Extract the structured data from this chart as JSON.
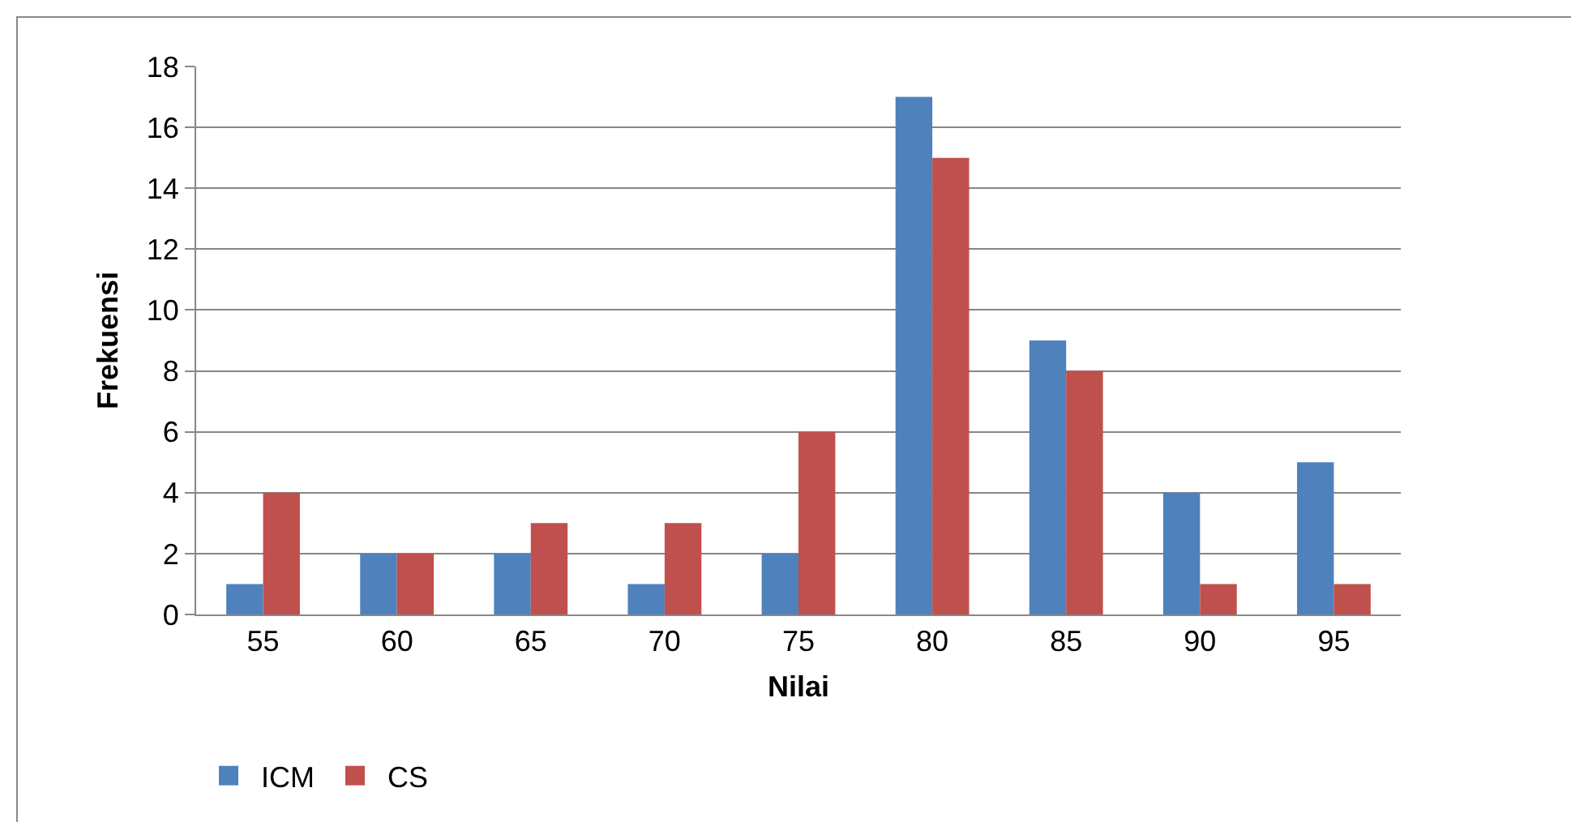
{
  "chart_data": {
    "type": "bar",
    "xlabel": "Nilai",
    "ylabel": "Frekuensi",
    "categories": [
      "55",
      "60",
      "65",
      "70",
      "75",
      "80",
      "85",
      "90",
      "95"
    ],
    "series": [
      {
        "name": "ICM",
        "color": "#4f81bd",
        "values": [
          1,
          2,
          2,
          1,
          2,
          17,
          9,
          4,
          5
        ]
      },
      {
        "name": "CS",
        "color": "#c0504d",
        "values": [
          4,
          2,
          3,
          3,
          6,
          15,
          8,
          1,
          1
        ]
      }
    ],
    "ylim": [
      0,
      18
    ],
    "yticks": [
      0,
      2,
      4,
      6,
      8,
      10,
      12,
      14,
      16,
      18
    ],
    "grid": "y",
    "legend": "bottom left"
  }
}
